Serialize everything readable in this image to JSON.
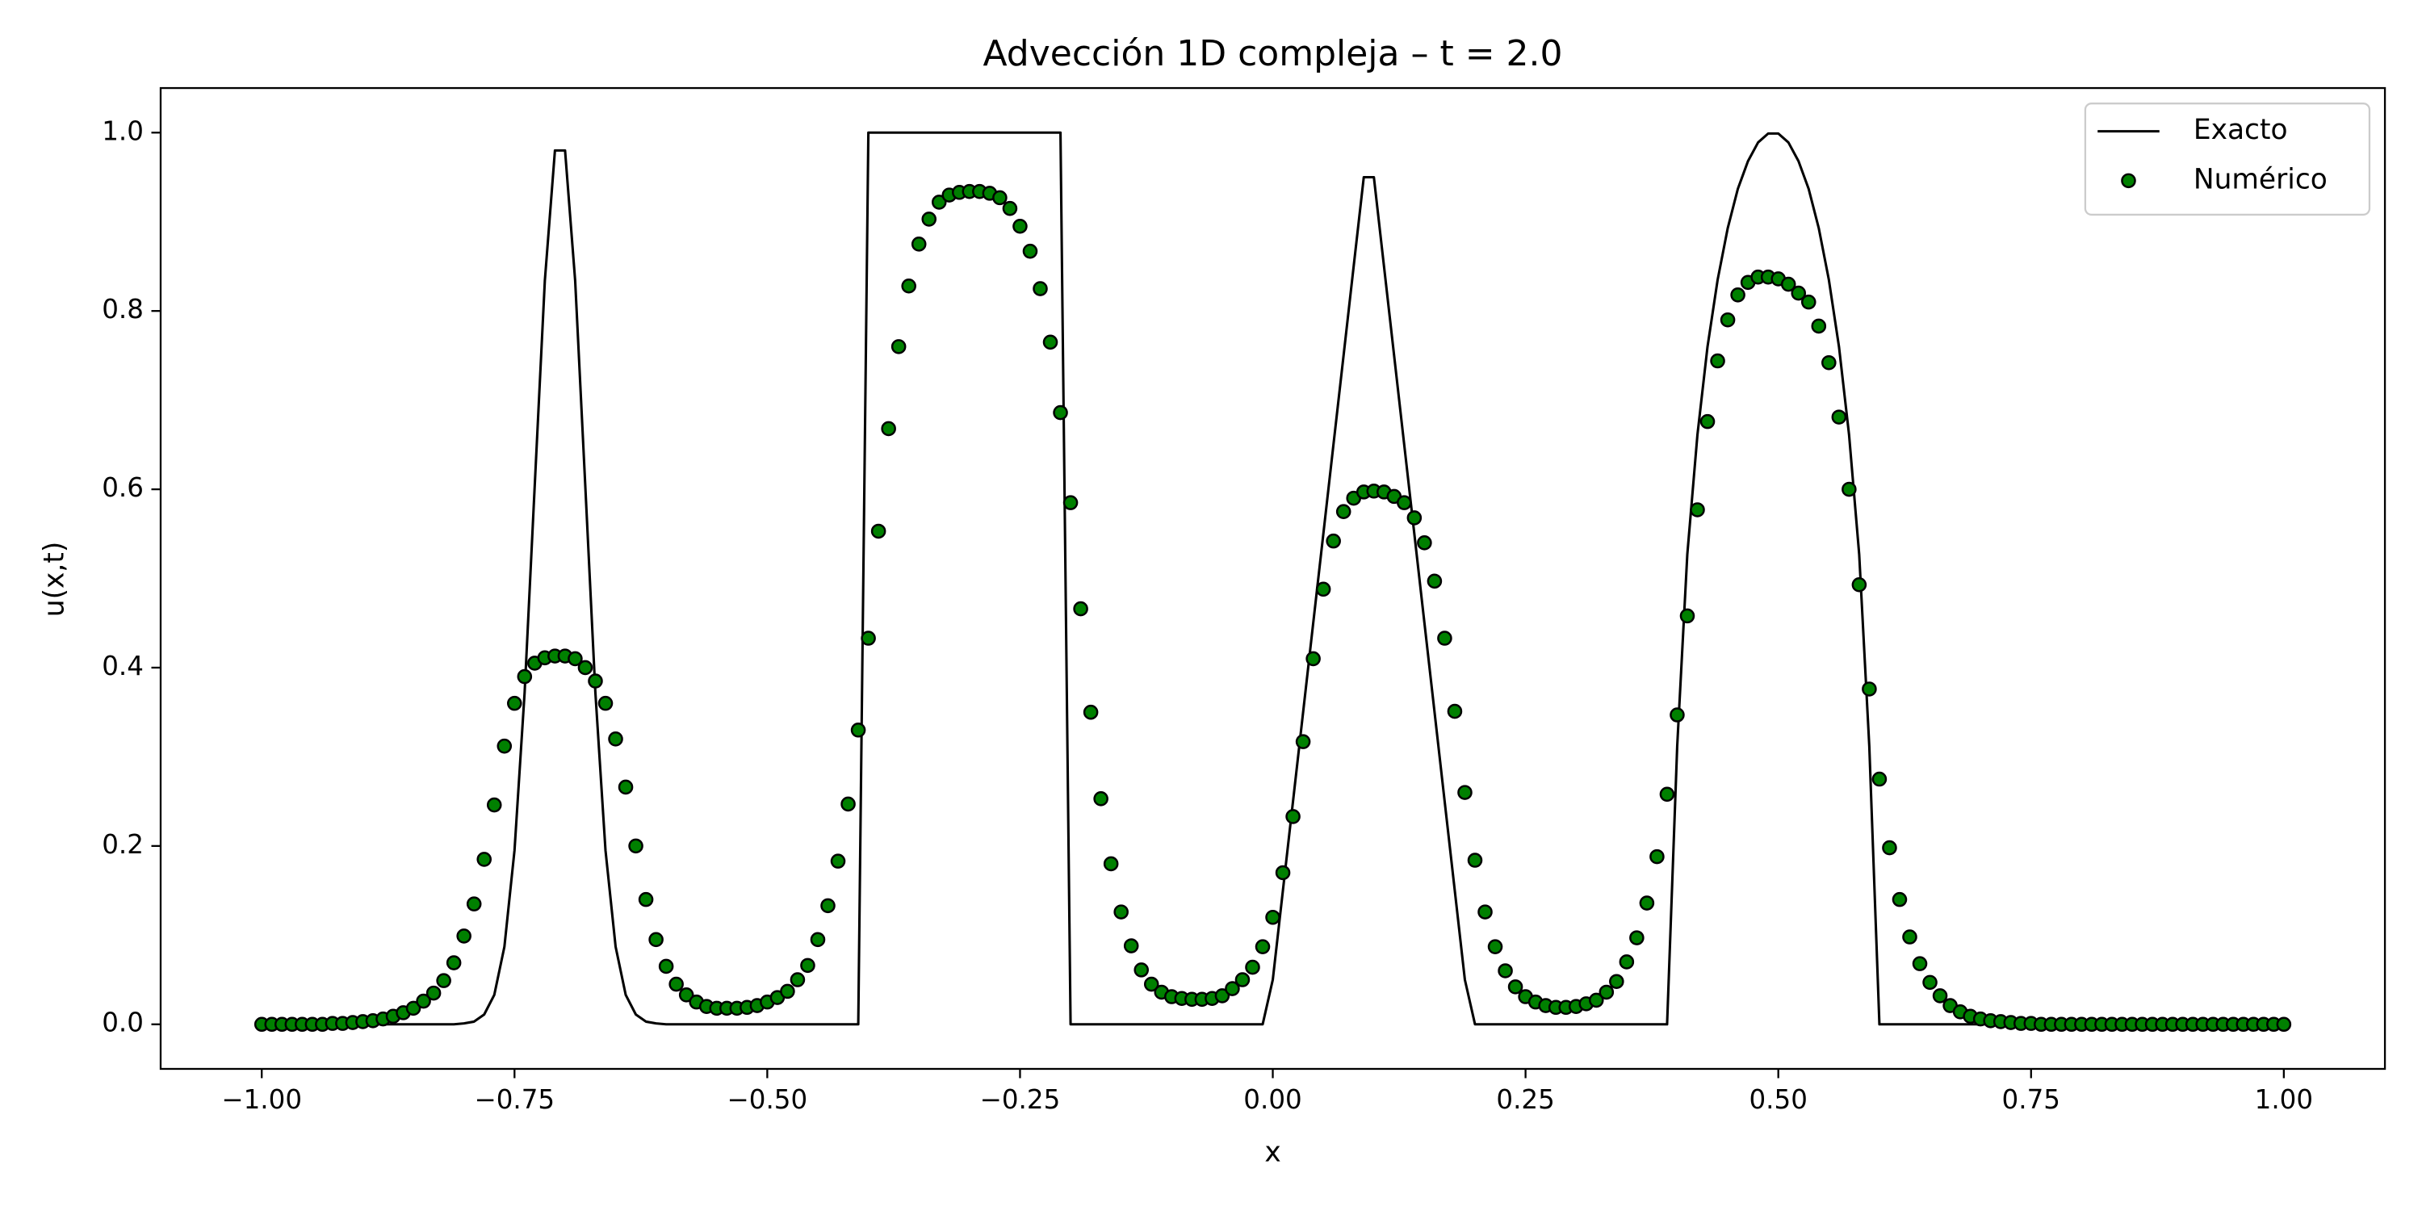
{
  "chart_data": {
    "type": "line",
    "title": "Advección 1D compleja – t = 2.0",
    "x_label": "x",
    "y_label": "u(x,t)",
    "xlim": [
      -1.1,
      1.1
    ],
    "ylim": [
      -0.05,
      1.05
    ],
    "xticks": [
      {
        "value": -1,
        "label": "−1.00"
      },
      {
        "value": -0.75,
        "label": "−0.75"
      },
      {
        "value": -0.5,
        "label": "−0.50"
      },
      {
        "value": -0.25,
        "label": "−0.25"
      },
      {
        "value": 0,
        "label": "0.00"
      },
      0.25,
      {
        "value": 0.5,
        "label": "0.50"
      },
      0.75,
      {
        "value": 1,
        "label": "1.00"
      }
    ],
    "yticks": [
      {
        "value": 0,
        "label": "0.0"
      },
      0.2,
      0.4,
      0.6,
      0.8,
      {
        "value": 1,
        "label": "1.0"
      }
    ],
    "grid": false,
    "legend": "upper right",
    "x": [
      -1.0,
      -0.99,
      -0.98,
      -0.97,
      -0.96,
      -0.95,
      -0.94,
      -0.93,
      -0.92,
      -0.91,
      -0.9,
      -0.89,
      -0.88,
      -0.87,
      -0.86,
      -0.85,
      -0.84,
      -0.83,
      -0.82,
      -0.81,
      -0.8,
      -0.79,
      -0.78,
      -0.77,
      -0.76,
      -0.75,
      -0.74,
      -0.73,
      -0.72,
      -0.71,
      -0.7,
      -0.69,
      -0.68,
      -0.67,
      -0.66,
      -0.65,
      -0.64,
      -0.63,
      -0.62,
      -0.61,
      -0.6,
      -0.59,
      -0.58,
      -0.57,
      -0.56,
      -0.55,
      -0.54,
      -0.53,
      -0.52,
      -0.51,
      -0.5,
      -0.49,
      -0.48,
      -0.47,
      -0.46,
      -0.45,
      -0.44,
      -0.43,
      -0.42,
      -0.41,
      -0.4,
      -0.39,
      -0.38,
      -0.37,
      -0.36,
      -0.35,
      -0.34,
      -0.33,
      -0.32,
      -0.31,
      -0.3,
      -0.29,
      -0.28,
      -0.27,
      -0.26,
      -0.25,
      -0.24,
      -0.23,
      -0.22,
      -0.21,
      -0.2,
      -0.19,
      -0.18,
      -0.17,
      -0.16,
      -0.15,
      -0.14,
      -0.13,
      -0.12,
      -0.11,
      -0.1,
      -0.09,
      -0.08,
      -0.07,
      -0.06,
      -0.05,
      -0.04,
      -0.03,
      -0.02,
      -0.01,
      0.0,
      0.01,
      0.02,
      0.03,
      0.04,
      0.05,
      0.06,
      0.07,
      0.08,
      0.09,
      0.1,
      0.11,
      0.12,
      0.13,
      0.14,
      0.15,
      0.16,
      0.17,
      0.18,
      0.19,
      0.2,
      0.21,
      0.22,
      0.23,
      0.24,
      0.25,
      0.26,
      0.27,
      0.28,
      0.29,
      0.3,
      0.31,
      0.32,
      0.33,
      0.34,
      0.35,
      0.36,
      0.37,
      0.38,
      0.39,
      0.4,
      0.41,
      0.42,
      0.43,
      0.44,
      0.45,
      0.46,
      0.47,
      0.48,
      0.49,
      0.5,
      0.51,
      0.52,
      0.53,
      0.54,
      0.55,
      0.56,
      0.57,
      0.58,
      0.59,
      0.6,
      0.61,
      0.62,
      0.63,
      0.64,
      0.65,
      0.66,
      0.67,
      0.68,
      0.69,
      0.7,
      0.71,
      0.72,
      0.73,
      0.74,
      0.75,
      0.76,
      0.77,
      0.78,
      0.79,
      0.8,
      0.81,
      0.82,
      0.83,
      0.84,
      0.85,
      0.86,
      0.87,
      0.88,
      0.89,
      0.9,
      0.91,
      0.92,
      0.93,
      0.94,
      0.95,
      0.96,
      0.97,
      0.98,
      0.99,
      1.0
    ],
    "series": [
      {
        "name": "Exacto",
        "style": "line",
        "color": "#000000",
        "values": [
          0,
          0,
          0,
          0,
          0,
          0,
          0,
          0,
          0,
          0,
          0,
          0,
          0,
          0,
          0,
          0,
          0,
          0,
          0,
          0,
          0.001,
          0.003,
          0.011,
          0.033,
          0.087,
          0.195,
          0.372,
          0.604,
          0.834,
          0.98,
          0.98,
          0.834,
          0.604,
          0.372,
          0.195,
          0.087,
          0.033,
          0.011,
          0.003,
          0.001,
          0,
          0,
          0,
          0,
          0,
          0,
          0,
          0,
          0,
          0,
          0,
          0,
          0,
          0,
          0,
          0,
          0,
          0,
          0,
          0,
          1,
          1,
          1,
          1,
          1,
          1,
          1,
          1,
          1,
          1,
          1,
          1,
          1,
          1,
          1,
          1,
          1,
          1,
          1,
          1,
          0,
          0,
          0,
          0,
          0,
          0,
          0,
          0,
          0,
          0,
          0,
          0,
          0,
          0,
          0,
          0,
          0,
          0,
          0,
          0,
          0.05,
          0.15,
          0.25,
          0.35,
          0.45,
          0.55,
          0.65,
          0.75,
          0.85,
          0.95,
          0.95,
          0.85,
          0.75,
          0.65,
          0.55,
          0.45,
          0.35,
          0.25,
          0.15,
          0.05,
          0,
          0,
          0,
          0,
          0,
          0,
          0,
          0,
          0,
          0,
          0,
          0,
          0,
          0,
          0,
          0,
          0,
          0,
          0,
          0,
          0.312,
          0.527,
          0.661,
          0.76,
          0.835,
          0.893,
          0.937,
          0.968,
          0.989,
          0.999,
          0.999,
          0.989,
          0.968,
          0.937,
          0.893,
          0.835,
          0.76,
          0.661,
          0.527,
          0.312,
          0,
          0,
          0,
          0,
          0,
          0,
          0,
          0,
          0,
          0,
          0,
          0,
          0,
          0,
          0,
          0,
          0,
          0,
          0,
          0,
          0,
          0,
          0,
          0,
          0,
          0,
          0,
          0,
          0,
          0,
          0,
          0,
          0,
          0,
          0,
          0,
          0,
          0,
          0,
          0,
          0
        ]
      },
      {
        "name": "Numérico",
        "style": "marker",
        "color": "#008000",
        "edgecolor": "#000000",
        "values": [
          0,
          0,
          0,
          0,
          0,
          0,
          0,
          0.001,
          0.001,
          0.002,
          0.003,
          0.004,
          0.006,
          0.009,
          0.013,
          0.018,
          0.026,
          0.035,
          0.049,
          0.069,
          0.099,
          0.135,
          0.185,
          0.246,
          0.312,
          0.36,
          0.39,
          0.405,
          0.411,
          0.413,
          0.413,
          0.41,
          0.4,
          0.385,
          0.36,
          0.32,
          0.266,
          0.2,
          0.14,
          0.095,
          0.065,
          0.045,
          0.033,
          0.025,
          0.02,
          0.018,
          0.018,
          0.018,
          0.019,
          0.021,
          0.025,
          0.03,
          0.037,
          0.05,
          0.066,
          0.095,
          0.133,
          0.183,
          0.247,
          0.33,
          0.433,
          0.553,
          0.668,
          0.76,
          0.828,
          0.875,
          0.903,
          0.922,
          0.93,
          0.933,
          0.934,
          0.934,
          0.932,
          0.927,
          0.915,
          0.895,
          0.867,
          0.825,
          0.765,
          0.686,
          0.585,
          0.466,
          0.35,
          0.253,
          0.18,
          0.126,
          0.088,
          0.061,
          0.045,
          0.036,
          0.031,
          0.029,
          0.028,
          0.028,
          0.029,
          0.032,
          0.04,
          0.05,
          0.064,
          0.087,
          0.12,
          0.17,
          0.233,
          0.317,
          0.41,
          0.488,
          0.542,
          0.575,
          0.59,
          0.597,
          0.598,
          0.597,
          0.592,
          0.585,
          0.568,
          0.54,
          0.497,
          0.433,
          0.351,
          0.26,
          0.184,
          0.126,
          0.087,
          0.06,
          0.042,
          0.031,
          0.025,
          0.021,
          0.019,
          0.019,
          0.02,
          0.023,
          0.027,
          0.036,
          0.048,
          0.07,
          0.097,
          0.136,
          0.188,
          0.258,
          0.347,
          0.458,
          0.577,
          0.676,
          0.744,
          0.79,
          0.818,
          0.832,
          0.838,
          0.838,
          0.836,
          0.83,
          0.82,
          0.81,
          0.783,
          0.742,
          0.681,
          0.6,
          0.493,
          0.376,
          0.275,
          0.198,
          0.14,
          0.098,
          0.068,
          0.047,
          0.032,
          0.021,
          0.014,
          0.009,
          0.006,
          0.004,
          0.003,
          0.002,
          0.001,
          0.001,
          0,
          0,
          0,
          0,
          0,
          0,
          0,
          0,
          0,
          0,
          0,
          0,
          0,
          0,
          0,
          0,
          0,
          0,
          0,
          0,
          0,
          0,
          0,
          0,
          0
        ]
      }
    ]
  }
}
